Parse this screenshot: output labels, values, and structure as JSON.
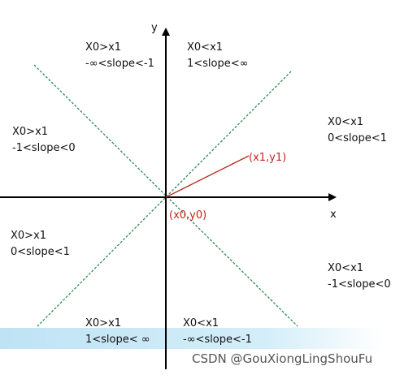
{
  "axes": {
    "x_label": "x",
    "y_label": "y"
  },
  "regions": [
    {
      "line1": "X0>x1",
      "line2": "-∞<slope<-1"
    },
    {
      "line1": "X0<x1",
      "line2": "1<slope<∞"
    },
    {
      "line1": "X0>x1",
      "line2": "-1<slope<0"
    },
    {
      "line1": "X0<x1",
      "line2": "0<slope<1"
    },
    {
      "line1": "X0>x1",
      "line2": "0<slope<1"
    },
    {
      "line1": "X0<x1",
      "line2": "-1<slope<0"
    },
    {
      "line1": "X0>x1",
      "line2": "1<slope< ∞"
    },
    {
      "line1": "X0<x1",
      "line2": "-∞<slope<-1"
    }
  ],
  "points": {
    "end": "(x1,y1)",
    "origin": "(x0,y0)"
  },
  "watermark": "CSDN @GouXiongLingShouFu"
}
